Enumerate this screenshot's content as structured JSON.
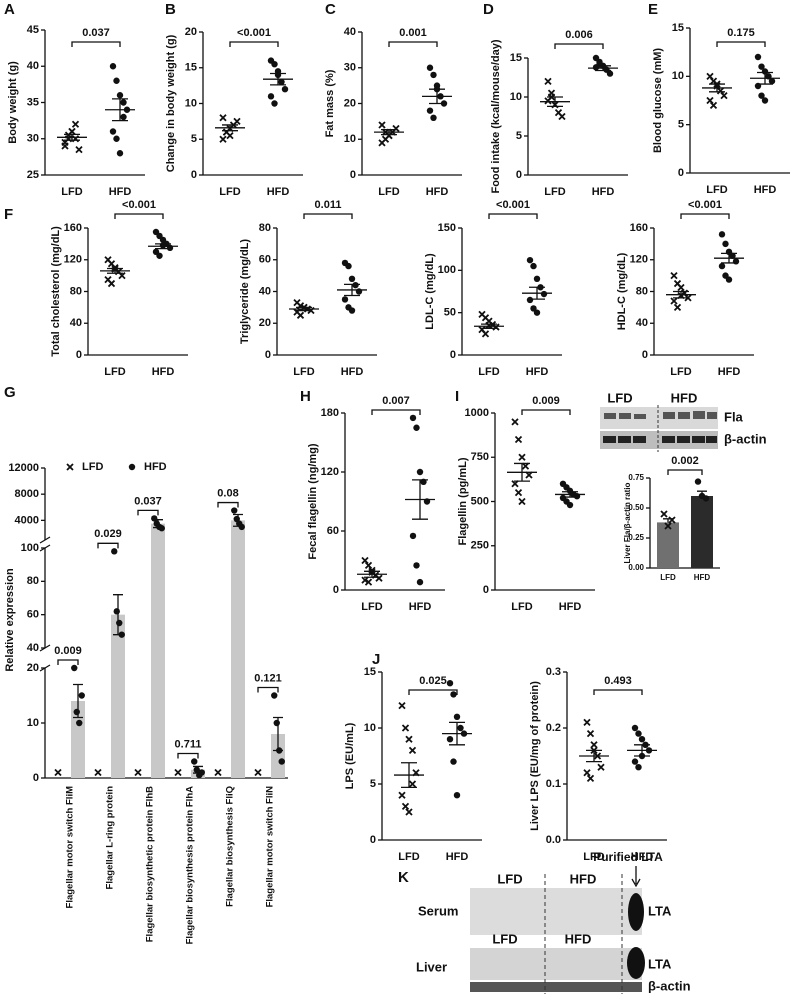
{
  "chart_data": [
    {
      "type": "dot",
      "panel": "A",
      "y_label": "Body weight (g)",
      "categories": [
        "LFD",
        "HFD"
      ],
      "markers": [
        "x",
        "circle"
      ],
      "ylim": [
        25,
        45
      ],
      "yticks": [
        25,
        30,
        35,
        40,
        45
      ],
      "p_value": "0.037",
      "groups": [
        {
          "points": [
            29,
            30,
            31,
            32,
            28.5,
            29.5,
            30.5,
            31,
            30
          ],
          "mean": 30.2,
          "sem": 0.4
        },
        {
          "points": [
            40,
            38,
            36,
            35,
            34,
            31,
            30,
            28,
            33
          ],
          "mean": 34,
          "sem": 1.5
        }
      ]
    },
    {
      "type": "dot",
      "panel": "B",
      "y_label": "Change in body weight (g)",
      "categories": [
        "LFD",
        "HFD"
      ],
      "markers": [
        "x",
        "circle"
      ],
      "ylim": [
        0,
        20
      ],
      "yticks": [
        0,
        5,
        10,
        15,
        20
      ],
      "p_value": "<0.001",
      "groups": [
        {
          "points": [
            5,
            6,
            6.5,
            7,
            7.5,
            8,
            6,
            5.5
          ],
          "mean": 6.6,
          "sem": 0.4
        },
        {
          "points": [
            16,
            15.5,
            14,
            13,
            12,
            11,
            10,
            14.5
          ],
          "mean": 13.4,
          "sem": 0.8
        }
      ]
    },
    {
      "type": "dot",
      "panel": "C",
      "y_label": "Fat mass (%)",
      "categories": [
        "LFD",
        "HFD"
      ],
      "markers": [
        "x",
        "circle"
      ],
      "ylim": [
        0,
        40
      ],
      "yticks": [
        0,
        10,
        20,
        30,
        40
      ],
      "p_value": "0.001",
      "groups": [
        {
          "points": [
            9,
            10,
            11,
            12,
            13,
            14,
            12,
            11
          ],
          "mean": 12,
          "sem": 0.7
        },
        {
          "points": [
            30,
            28,
            25,
            22,
            20,
            18,
            16,
            24
          ],
          "mean": 22,
          "sem": 2
        }
      ]
    },
    {
      "type": "dot",
      "panel": "D",
      "y_label": "Food intake (kcal/mouse/day)",
      "categories": [
        "LFD",
        "HFD"
      ],
      "markers": [
        "x",
        "circle"
      ],
      "ylim": [
        0,
        15
      ],
      "yticks": [
        0,
        5,
        10,
        15
      ],
      "p_value": "0.006",
      "groups": [
        {
          "points": [
            12,
            10.5,
            9,
            8,
            7.5,
            9.5,
            10
          ],
          "mean": 9.4,
          "sem": 0.6
        },
        {
          "points": [
            15,
            14.5,
            14,
            13.5,
            13,
            13.8,
            14.2
          ],
          "mean": 13.7,
          "sem": 0.3
        }
      ]
    },
    {
      "type": "dot",
      "panel": "E",
      "y_label": "Blood glucose (mM)",
      "categories": [
        "LFD",
        "HFD"
      ],
      "markers": [
        "x",
        "circle"
      ],
      "ylim": [
        0,
        15
      ],
      "yticks": [
        0,
        5,
        10,
        15
      ],
      "p_value": "0.175",
      "groups": [
        {
          "points": [
            10,
            9.5,
            9,
            8.5,
            8,
            7.5,
            7,
            9.2
          ],
          "mean": 8.8,
          "sem": 0.4
        },
        {
          "points": [
            12,
            11,
            10.5,
            10,
            9.5,
            9,
            8,
            7.5
          ],
          "mean": 9.8,
          "sem": 0.6
        }
      ]
    },
    {
      "type": "dot",
      "panel": "F",
      "y_label": "Total cholesterol (mg/dL)",
      "categories": [
        "LFD",
        "HFD"
      ],
      "markers": [
        "x",
        "circle"
      ],
      "ylim": [
        0,
        160
      ],
      "yticks": [
        0,
        40,
        80,
        120,
        160
      ],
      "p_value": "<0.001",
      "groups": [
        {
          "points": [
            120,
            115,
            110,
            105,
            100,
            95,
            90,
            108
          ],
          "mean": 106,
          "sem": 3
        },
        {
          "points": [
            155,
            150,
            145,
            140,
            135,
            130,
            125,
            138
          ],
          "mean": 137,
          "sem": 3
        }
      ]
    },
    {
      "type": "dot",
      "y_label": "Triglyceride (mg/dL)",
      "categories": [
        "LFD",
        "HFD"
      ],
      "markers": [
        "x",
        "circle"
      ],
      "ylim": [
        0,
        80
      ],
      "yticks": [
        0,
        20,
        40,
        60,
        80
      ],
      "p_value": "0.011",
      "groups": [
        {
          "points": [
            33,
            31,
            30,
            29,
            28,
            27,
            25,
            30
          ],
          "mean": 29,
          "sem": 1
        },
        {
          "points": [
            58,
            56,
            48,
            44,
            40,
            35,
            30,
            28
          ],
          "mean": 41,
          "sem": 3.5
        }
      ]
    },
    {
      "type": "dot",
      "y_label": "LDL-C (mg/dL)",
      "categories": [
        "LFD",
        "HFD"
      ],
      "markers": [
        "x",
        "circle"
      ],
      "ylim": [
        0,
        150
      ],
      "yticks": [
        0,
        50,
        100,
        150
      ],
      "p_value": "<0.001",
      "groups": [
        {
          "points": [
            48,
            44,
            40,
            36,
            33,
            30,
            25,
            35
          ],
          "mean": 34,
          "sem": 2.5
        },
        {
          "points": [
            112,
            105,
            90,
            80,
            72,
            65,
            55,
            50
          ],
          "mean": 73,
          "sem": 7
        }
      ]
    },
    {
      "type": "dot",
      "y_label": "HDL-C (mg/dL)",
      "categories": [
        "LFD",
        "HFD"
      ],
      "markers": [
        "x",
        "circle"
      ],
      "ylim": [
        0,
        160
      ],
      "yticks": [
        0,
        40,
        80,
        120,
        160
      ],
      "p_value": "<0.001",
      "groups": [
        {
          "points": [
            100,
            90,
            85,
            78,
            72,
            68,
            60,
            75
          ],
          "mean": 76,
          "sem": 4
        },
        {
          "points": [
            152,
            140,
            130,
            125,
            118,
            112,
            100,
            95
          ],
          "mean": 122,
          "sem": 6
        }
      ]
    },
    {
      "type": "broken_bar",
      "panel": "G",
      "y_label": "Relative expression",
      "categories": [
        "Flagellar motor switch FliM",
        "Flagellar L-ring protein",
        "Flagellar biosynthetic protein FlhB",
        "Flagellar biosynthesis protein FlhA",
        "Flagellar biosynthesis FliQ",
        "Flagellar motor switch FliN"
      ],
      "segments": [
        {
          "ylim": [
            0,
            20
          ],
          "yticks": [
            0,
            10,
            20
          ]
        },
        {
          "ylim": [
            40,
            100
          ],
          "yticks": [
            40,
            60,
            80,
            100
          ]
        },
        {
          "ylim": [
            1000,
            12000
          ],
          "yticks": [
            4000,
            8000,
            12000
          ]
        }
      ],
      "p_values": [
        "0.009",
        "0.029",
        "0.037",
        "0.711",
        "0.08",
        "0.121"
      ],
      "series": [
        {
          "name": "LFD",
          "marker": "x",
          "values": [
            1,
            1,
            1,
            1,
            1,
            1
          ]
        },
        {
          "name": "HFD",
          "marker": "circle",
          "color": "#c8c8c8",
          "values": [
            14,
            60,
            3500,
            1.5,
            4000,
            8
          ],
          "errors": [
            3,
            12,
            600,
            0.6,
            900,
            3
          ],
          "points": [
            [
              20,
              12,
              10,
              15
            ],
            [
              98,
              62,
              55,
              48
            ],
            [
              4300,
              3500,
              3000,
              2800
            ],
            [
              3,
              1.5,
              0.5,
              1
            ],
            [
              5500,
              4200,
              3500,
              3000
            ],
            [
              15,
              10,
              5,
              3
            ]
          ]
        }
      ]
    },
    {
      "type": "dot",
      "panel": "H",
      "y_label": "Fecal flagellin (ng/mg)",
      "categories": [
        "LFD",
        "HFD"
      ],
      "markers": [
        "x",
        "circle"
      ],
      "ylim": [
        0,
        180
      ],
      "yticks": [
        0,
        60,
        120,
        180
      ],
      "p_value": "0.007",
      "groups": [
        {
          "points": [
            30,
            25,
            20,
            15,
            12,
            10,
            8,
            18
          ],
          "mean": 16,
          "sem": 3
        },
        {
          "points": [
            175,
            165,
            120,
            110,
            90,
            55,
            25,
            8
          ],
          "mean": 92,
          "sem": 20
        }
      ]
    },
    {
      "type": "dot",
      "panel": "I",
      "y_label": "Flagellin (pg/mL)",
      "categories": [
        "LFD",
        "HFD"
      ],
      "markers": [
        "x",
        "circle"
      ],
      "ylim": [
        0,
        1000
      ],
      "yticks": [
        0,
        250,
        500,
        750,
        1000
      ],
      "p_value": "0.009",
      "groups": [
        {
          "points": [
            950,
            850,
            750,
            700,
            650,
            600,
            550,
            500
          ],
          "mean": 665,
          "sem": 50
        },
        {
          "points": [
            600,
            580,
            560,
            540,
            530,
            520,
            500,
            480
          ],
          "mean": 540,
          "sem": 15
        }
      ]
    },
    {
      "type": "bar",
      "y_label": "Liver Fla/β-actin ratio",
      "categories": [
        "LFD",
        "HFD"
      ],
      "markers": [
        "x",
        "circle"
      ],
      "colors": [
        "#707070",
        "#2b2b2b"
      ],
      "ylim": [
        0,
        0.75
      ],
      "yticks": [
        {
          "value": 0,
          "label": "0.00"
        },
        0.25,
        {
          "value": 0.5,
          "label": "0.50"
        },
        0.75
      ],
      "p_value": "0.002",
      "values": [
        0.38,
        0.6
      ],
      "errors": [
        0.03,
        0.04
      ],
      "points": [
        [
          0.45,
          0.35,
          0.4
        ],
        [
          0.72,
          0.6,
          0.58
        ]
      ]
    },
    {
      "type": "dot",
      "panel": "J",
      "y_label": "LPS (EU/mL)",
      "categories": [
        "LFD",
        "HFD"
      ],
      "markers": [
        "x",
        "circle"
      ],
      "ylim": [
        0,
        15
      ],
      "yticks": [
        0,
        5,
        10,
        15
      ],
      "p_value": "0.025",
      "groups": [
        {
          "points": [
            12,
            10,
            9,
            8,
            6,
            4,
            3,
            2.5,
            5
          ],
          "mean": 5.8,
          "sem": 1.1
        },
        {
          "points": [
            14,
            13,
            11,
            10,
            9.5,
            9,
            7,
            4
          ],
          "mean": 9.5,
          "sem": 1
        }
      ]
    },
    {
      "type": "dot",
      "y_label": "Liver LPS (EU/mg of protein)",
      "categories": [
        "LFD",
        "HFD"
      ],
      "markers": [
        "x",
        "circle"
      ],
      "ylim": [
        0,
        0.3
      ],
      "yticks": [
        {
          "value": 0,
          "label": "0.0"
        },
        0.1,
        0.2,
        0.3
      ],
      "p_value": "0.493",
      "groups": [
        {
          "points": [
            0.21,
            0.19,
            0.17,
            0.15,
            0.13,
            0.12,
            0.11,
            0.16
          ],
          "mean": 0.15,
          "sem": 0.01
        },
        {
          "points": [
            0.2,
            0.19,
            0.18,
            0.17,
            0.16,
            0.14,
            0.13,
            0.15
          ],
          "mean": 0.16,
          "sem": 0.01
        }
      ]
    }
  ],
  "blot_I": {
    "lanes": [
      "LFD",
      "HFD"
    ],
    "rows": [
      "Fla",
      "β-actin"
    ]
  },
  "blot_K": {
    "panel": "K",
    "marker_label": "Purified LTA",
    "serum": {
      "title": "Serum",
      "lanes": [
        "LFD",
        "HFD"
      ],
      "band": "LTA"
    },
    "liver": {
      "title": "Liver",
      "lanes": [
        "LFD",
        "HFD"
      ],
      "bands": [
        "LTA",
        "β-actin"
      ]
    }
  }
}
